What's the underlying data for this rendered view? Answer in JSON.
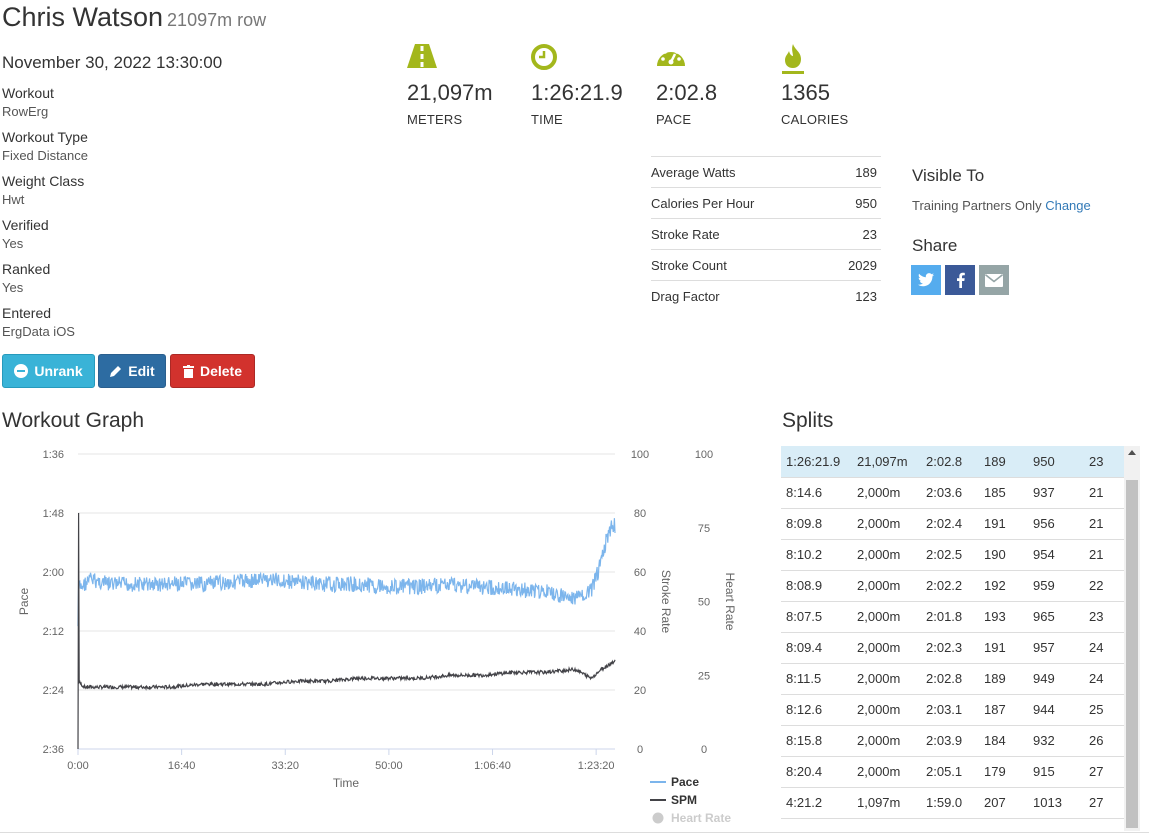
{
  "header": {
    "name": "Chris Watson",
    "subtitle": "21097m row"
  },
  "date": "November 30, 2022 13:30:00",
  "meta": [
    {
      "label": "Workout",
      "value": "RowErg"
    },
    {
      "label": "Workout Type",
      "value": "Fixed Distance"
    },
    {
      "label": "Weight Class",
      "value": "Hwt"
    },
    {
      "label": "Verified",
      "value": "Yes"
    },
    {
      "label": "Ranked",
      "value": "Yes"
    },
    {
      "label": "Entered",
      "value": "ErgData iOS"
    }
  ],
  "buttons": {
    "unrank": "Unrank",
    "edit": "Edit",
    "delete": "Delete"
  },
  "stats": [
    {
      "icon": "road-icon",
      "value": "21,097m",
      "label": "METERS"
    },
    {
      "icon": "clock-icon",
      "value": "1:26:21.9",
      "label": "TIME"
    },
    {
      "icon": "speedometer-icon",
      "value": "2:02.8",
      "label": "PACE"
    },
    {
      "icon": "flame-icon",
      "value": "1365",
      "label": "CALORIES"
    }
  ],
  "details": [
    {
      "label": "Average Watts",
      "value": "189"
    },
    {
      "label": "Calories Per Hour",
      "value": "950"
    },
    {
      "label": "Stroke Rate",
      "value": "23"
    },
    {
      "label": "Stroke Count",
      "value": "2029"
    },
    {
      "label": "Drag Factor",
      "value": "123"
    }
  ],
  "visibility": {
    "title": "Visible To",
    "value": "Training Partners Only",
    "change_link": "Change"
  },
  "share": {
    "title": "Share",
    "buttons": [
      "twitter-icon",
      "facebook-icon",
      "email-icon"
    ]
  },
  "graph_title": "Workout Graph",
  "splits_title": "Splits",
  "splits": [
    [
      "1:26:21.9",
      "21,097m",
      "2:02.8",
      "189",
      "950",
      "23"
    ],
    [
      "8:14.6",
      "2,000m",
      "2:03.6",
      "185",
      "937",
      "21"
    ],
    [
      "8:09.8",
      "2,000m",
      "2:02.4",
      "191",
      "956",
      "21"
    ],
    [
      "8:10.2",
      "2,000m",
      "2:02.5",
      "190",
      "954",
      "21"
    ],
    [
      "8:08.9",
      "2,000m",
      "2:02.2",
      "192",
      "959",
      "22"
    ],
    [
      "8:07.5",
      "2,000m",
      "2:01.8",
      "193",
      "965",
      "23"
    ],
    [
      "8:09.4",
      "2,000m",
      "2:02.3",
      "191",
      "957",
      "24"
    ],
    [
      "8:11.5",
      "2,000m",
      "2:02.8",
      "189",
      "949",
      "24"
    ],
    [
      "8:12.6",
      "2,000m",
      "2:03.1",
      "187",
      "944",
      "25"
    ],
    [
      "8:15.8",
      "2,000m",
      "2:03.9",
      "184",
      "932",
      "26"
    ],
    [
      "8:20.4",
      "2,000m",
      "2:05.1",
      "179",
      "915",
      "27"
    ],
    [
      "4:21.2",
      "1,097m",
      "1:59.0",
      "207",
      "1013",
      "27"
    ]
  ],
  "colors": {
    "accent": "#a3b71c",
    "pace": "#7cb5ec",
    "spm": "#434348",
    "heart": "#cccccc",
    "link": "#337ab7"
  },
  "chart_data": {
    "type": "line",
    "xlabel": "Time",
    "x_ticks": [
      "0:00",
      "16:40",
      "33:20",
      "50:00",
      "1:06:40",
      "1:23:20"
    ],
    "x_range_seconds": [
      0,
      5181.9
    ],
    "y_left": {
      "label": "Pace",
      "ticks": [
        "1:36",
        "1:48",
        "2:00",
        "2:12",
        "2:24",
        "2:36"
      ],
      "reversed": true
    },
    "y_right1": {
      "label": "Stroke Rate",
      "ticks": [
        "100",
        "80",
        "60",
        "40",
        "20",
        "0"
      ],
      "range": [
        0,
        100
      ]
    },
    "y_right2": {
      "label": "Heart Rate",
      "ticks": [
        "100",
        "75",
        "50",
        "25",
        "0"
      ],
      "range": [
        0,
        100
      ]
    },
    "grid": true,
    "legend_position": "bottom-right",
    "series": [
      {
        "name": "Pace",
        "x_seconds": [
          0,
          60,
          120,
          300,
          600,
          900,
          1200,
          1500,
          1800,
          2100,
          2400,
          2700,
          3000,
          3300,
          3600,
          3900,
          4200,
          4500,
          4700,
          4800,
          4950,
          5050,
          5100,
          5150,
          5182
        ],
        "pace_seconds": [
          123.5,
          122.5,
          121.5,
          122.5,
          122.5,
          122.5,
          122.5,
          122.0,
          121.5,
          122.0,
          122.5,
          122.5,
          123.0,
          123.0,
          122.5,
          123.0,
          123.5,
          124.0,
          125.0,
          125.5,
          124.0,
          118.0,
          113.0,
          111.0,
          110.5
        ]
      },
      {
        "name": "SPM",
        "x_seconds": [
          0,
          60,
          300,
          600,
          900,
          1200,
          1500,
          1800,
          2100,
          2400,
          2700,
          3000,
          3300,
          3600,
          3900,
          4200,
          4500,
          4800,
          4950,
          5050,
          5182
        ],
        "values": [
          23,
          21,
          21,
          21,
          21,
          22,
          22,
          22,
          23,
          23,
          24,
          24,
          24,
          25,
          25,
          26,
          26,
          27,
          24,
          27,
          30
        ]
      },
      {
        "name": "Heart Rate",
        "x_seconds": [],
        "values": []
      }
    ]
  }
}
